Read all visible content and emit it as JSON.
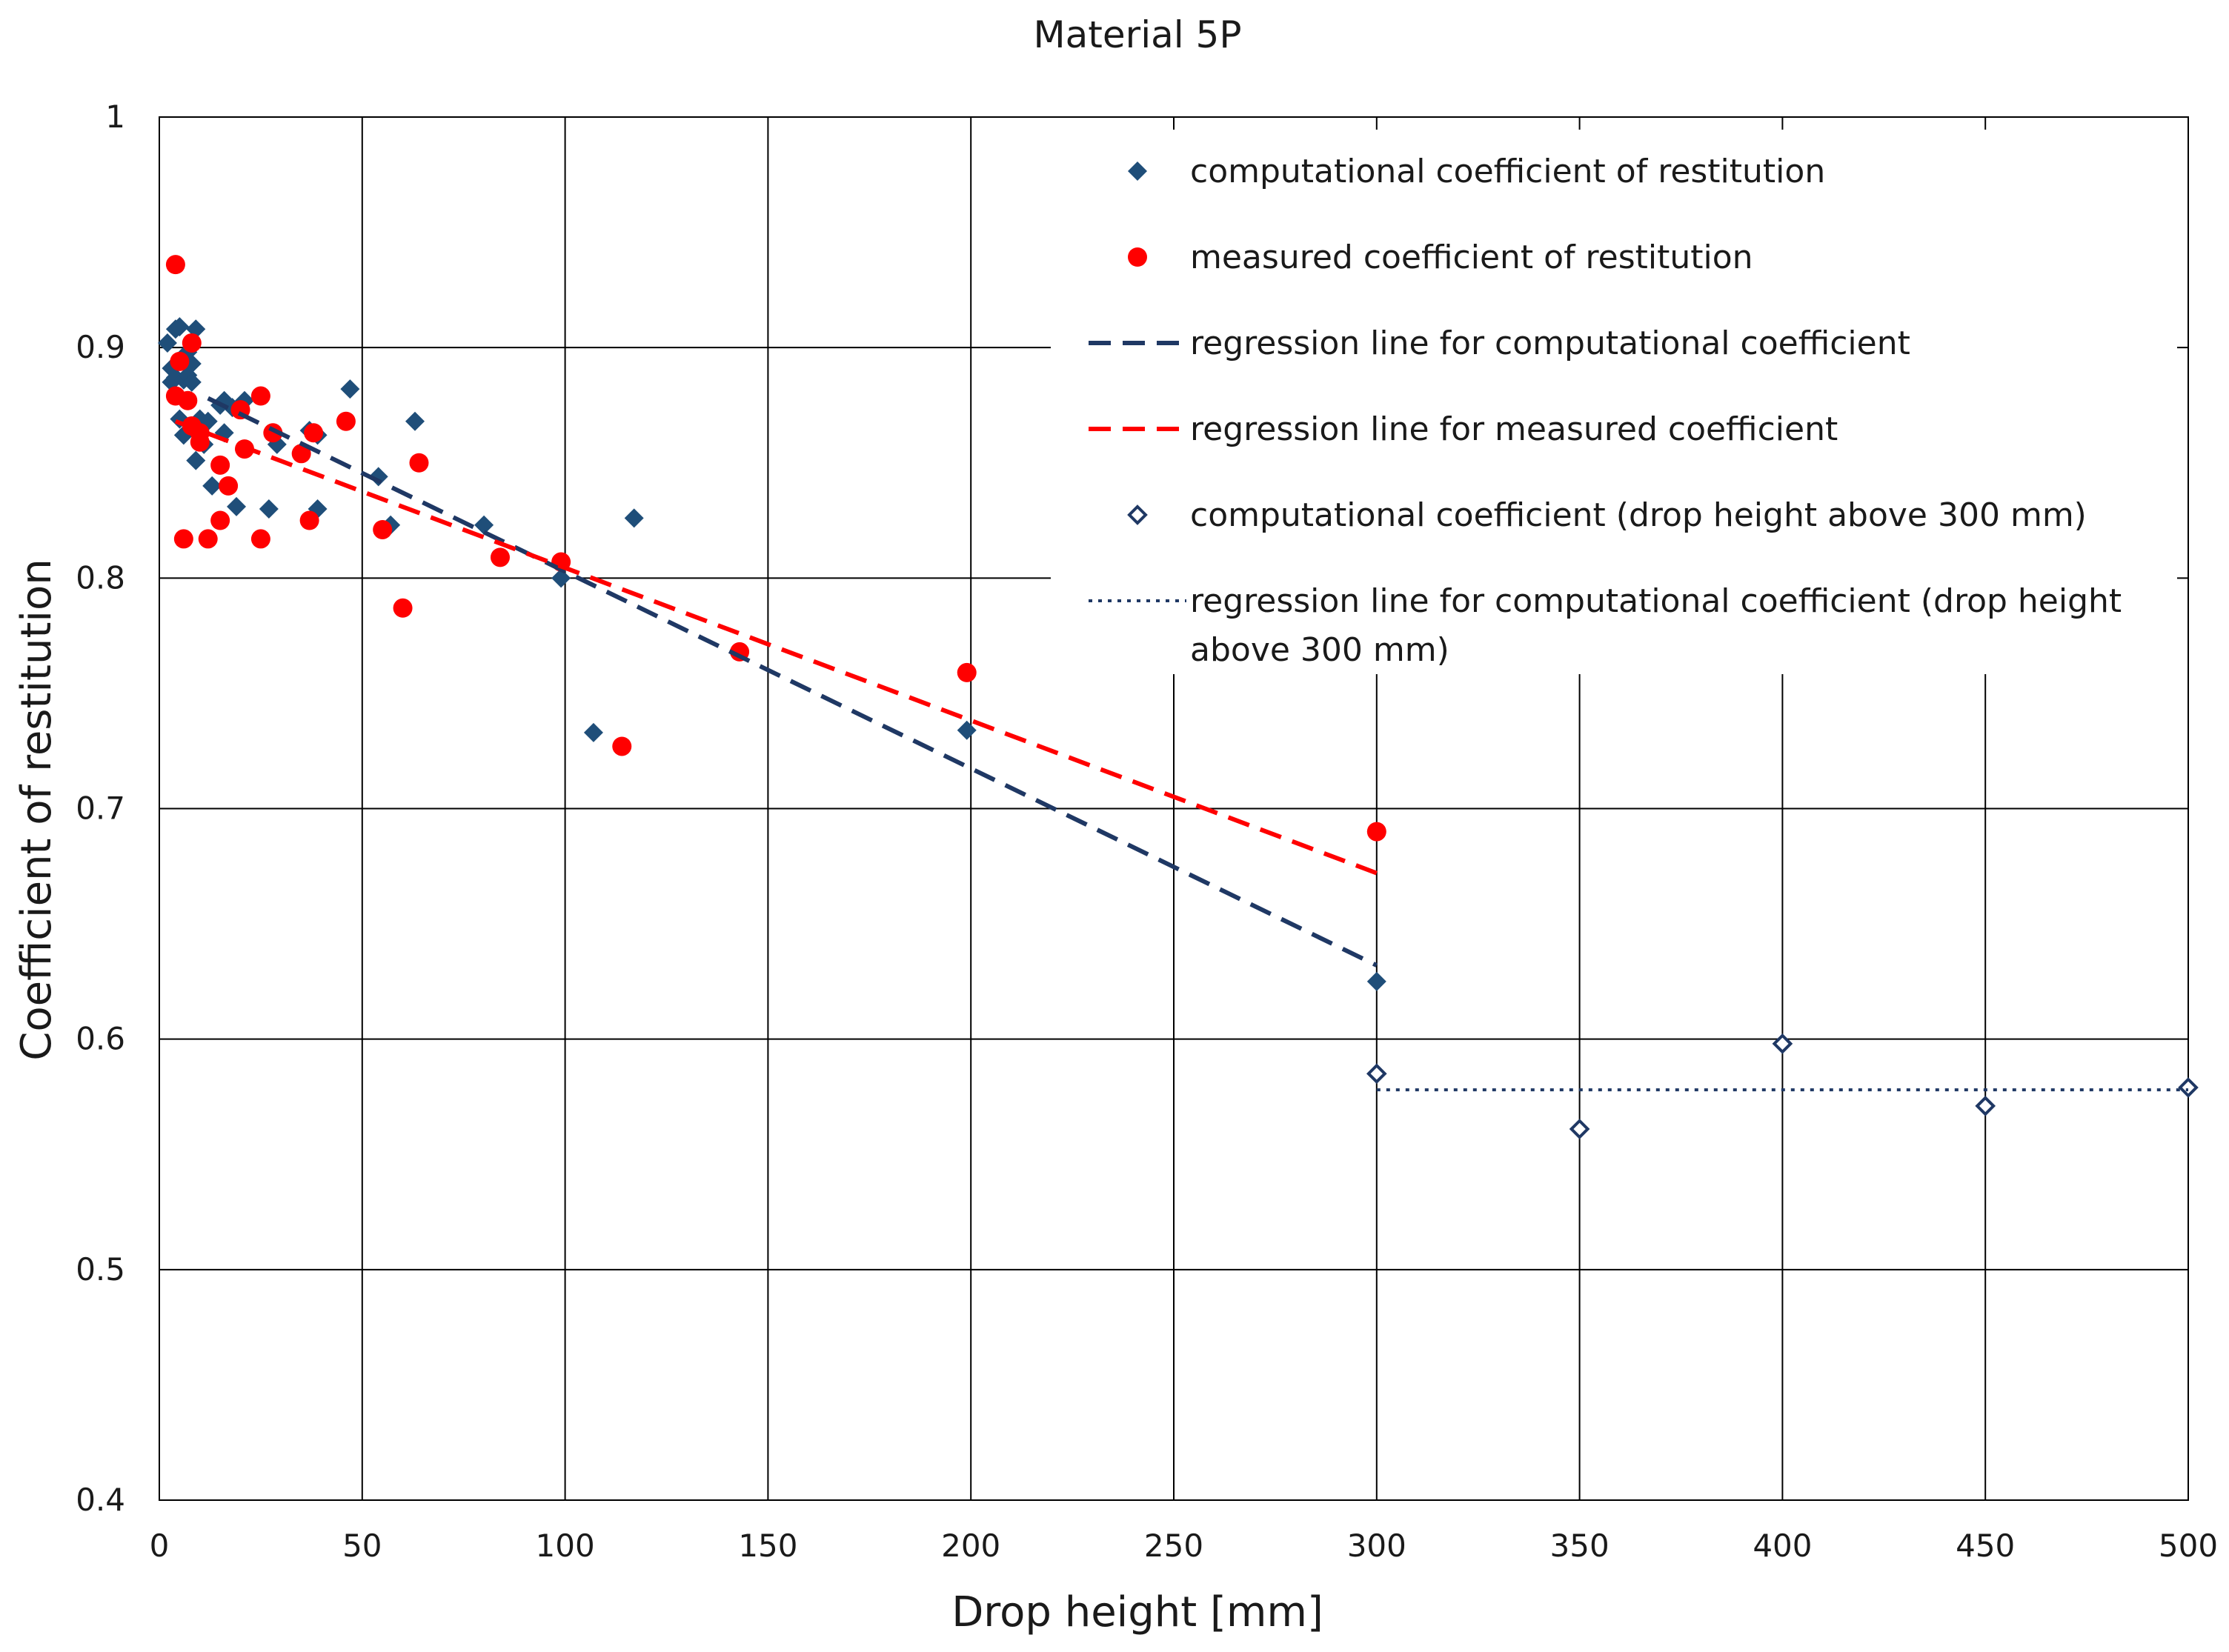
{
  "chart_data": {
    "type": "scatter",
    "title": "Material 5P",
    "xlabel": "Drop height [mm]",
    "ylabel": "Coefficient of restitution",
    "xlim": [
      0,
      500
    ],
    "ylim": [
      0.4,
      1.0
    ],
    "xticks": [
      0,
      50,
      100,
      150,
      200,
      250,
      300,
      350,
      400,
      450,
      500
    ],
    "yticks": [
      0.4,
      0.5,
      0.6,
      0.7,
      0.8,
      0.9,
      1.0
    ],
    "xtick_labels": [
      "0",
      "50",
      "100",
      "150",
      "200",
      "250",
      "300",
      "350",
      "400",
      "450",
      "500"
    ],
    "ytick_labels": [
      "0.4",
      "0.5",
      "0.6",
      "0.7",
      "0.8",
      "0.9",
      "1"
    ],
    "grid": true,
    "legend_position": "top-right",
    "series": [
      {
        "name": "computational coefficient of restitution",
        "kind": "points",
        "marker": "diamond-filled",
        "color": "#1f4e79",
        "points": [
          [
            2,
            0.902
          ],
          [
            3,
            0.885
          ],
          [
            3,
            0.891
          ],
          [
            4,
            0.908
          ],
          [
            4,
            0.887
          ],
          [
            5,
            0.909
          ],
          [
            5,
            0.869
          ],
          [
            6,
            0.886
          ],
          [
            6,
            0.862
          ],
          [
            7,
            0.888
          ],
          [
            7,
            0.898
          ],
          [
            8,
            0.893
          ],
          [
            8,
            0.885
          ],
          [
            9,
            0.908
          ],
          [
            9,
            0.851
          ],
          [
            10,
            0.869
          ],
          [
            11,
            0.858
          ],
          [
            12,
            0.868
          ],
          [
            13,
            0.84
          ],
          [
            15,
            0.875
          ],
          [
            16,
            0.877
          ],
          [
            16,
            0.863
          ],
          [
            18,
            0.874
          ],
          [
            19,
            0.831
          ],
          [
            21,
            0.877
          ],
          [
            27,
            0.83
          ],
          [
            29,
            0.858
          ],
          [
            37,
            0.864
          ],
          [
            39,
            0.83
          ],
          [
            39,
            0.862
          ],
          [
            47,
            0.882
          ],
          [
            54,
            0.844
          ],
          [
            57,
            0.823
          ],
          [
            63,
            0.868
          ],
          [
            80,
            0.823
          ],
          [
            99,
            0.8
          ],
          [
            107,
            0.733
          ],
          [
            117,
            0.826
          ],
          [
            199,
            0.734
          ],
          [
            300,
            0.625
          ]
        ]
      },
      {
        "name": "measured coefficient of restitution",
        "kind": "points",
        "marker": "circle",
        "color": "#ff0000",
        "points": [
          [
            4,
            0.936
          ],
          [
            4,
            0.879
          ],
          [
            5,
            0.894
          ],
          [
            6,
            0.817
          ],
          [
            7,
            0.877
          ],
          [
            8,
            0.866
          ],
          [
            8,
            0.902
          ],
          [
            10,
            0.859
          ],
          [
            10,
            0.863
          ],
          [
            12,
            0.817
          ],
          [
            15,
            0.849
          ],
          [
            15,
            0.825
          ],
          [
            17,
            0.84
          ],
          [
            20,
            0.873
          ],
          [
            21,
            0.856
          ],
          [
            25,
            0.879
          ],
          [
            25,
            0.817
          ],
          [
            28,
            0.863
          ],
          [
            35,
            0.854
          ],
          [
            37,
            0.825
          ],
          [
            38,
            0.863
          ],
          [
            46,
            0.868
          ],
          [
            55,
            0.821
          ],
          [
            60,
            0.787
          ],
          [
            64,
            0.85
          ],
          [
            84,
            0.809
          ],
          [
            99,
            0.807
          ],
          [
            114,
            0.727
          ],
          [
            143,
            0.768
          ],
          [
            199,
            0.759
          ],
          [
            300,
            0.69
          ]
        ]
      },
      {
        "name": "regression line for computational coefficient",
        "kind": "line",
        "style": "dashed",
        "color": "#1f3864",
        "points": [
          [
            12,
            0.878
          ],
          [
            300,
            0.632
          ]
        ]
      },
      {
        "name": "regression line for measured coefficient",
        "kind": "line",
        "style": "dashed",
        "color": "#ff0000",
        "points": [
          [
            4,
            0.868
          ],
          [
            300,
            0.672
          ]
        ]
      },
      {
        "name": "computational coefficient (drop height above 300 mm)",
        "kind": "points",
        "marker": "diamond-open",
        "color": "#1f3864",
        "points": [
          [
            300,
            0.585
          ],
          [
            350,
            0.561
          ],
          [
            400,
            0.598
          ],
          [
            450,
            0.571
          ],
          [
            500,
            0.579
          ]
        ]
      },
      {
        "name": "regression line for computational coefficient (drop height above 300 mm)",
        "kind": "line",
        "style": "dotted",
        "color": "#1f3864",
        "points": [
          [
            300,
            0.578
          ],
          [
            500,
            0.578
          ]
        ]
      }
    ],
    "legend": [
      {
        "label": "computational coefficient of restitution",
        "symbol": "diamond-filled",
        "color": "#1f4e79"
      },
      {
        "label": "measured coefficient of restitution",
        "symbol": "circle",
        "color": "#ff0000"
      },
      {
        "label": "regression line for computational coefficient",
        "symbol": "dashed-line",
        "color": "#1f3864"
      },
      {
        "label": "regression line for measured coefficient",
        "symbol": "dashed-line",
        "color": "#ff0000"
      },
      {
        "label": "computational coefficient (drop height above 300 mm)",
        "symbol": "diamond-open",
        "color": "#1f3864"
      },
      {
        "label": "regression line for computational coefficient (drop height above 300 mm)",
        "label_lines": [
          "regression line for computational coefficient (drop height",
          "above 300 mm)"
        ],
        "symbol": "dotted-line",
        "color": "#1f3864"
      }
    ]
  }
}
